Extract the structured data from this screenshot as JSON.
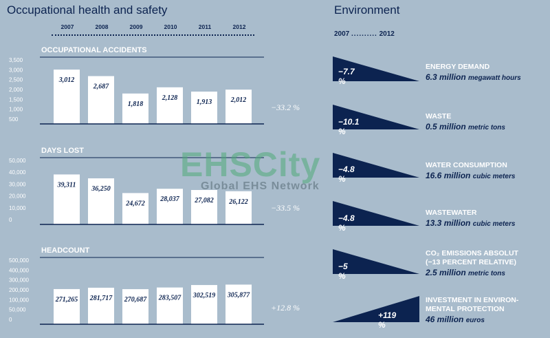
{
  "left_title": "Occupational health and safety",
  "right_title": "Environment",
  "years": [
    "2007",
    "2008",
    "2009",
    "2010",
    "2011",
    "2012"
  ],
  "env_range": {
    "start": "2007",
    "end": "2012"
  },
  "chart_data": [
    {
      "type": "bar",
      "title": "OCCUPATIONAL ACCIDENTS",
      "categories": [
        "2007",
        "2008",
        "2009",
        "2010",
        "2011",
        "2012"
      ],
      "values": [
        3012,
        2687,
        1818,
        2128,
        1913,
        2012
      ],
      "value_labels": [
        "3,012",
        "2,687",
        "1,818",
        "2,128",
        "1,913",
        "2,012"
      ],
      "yticks": [
        "3,500",
        "3,000",
        "2,500",
        "2,000",
        "1,500",
        "1,000",
        "500"
      ],
      "ylim": [
        300,
        3600
      ],
      "change": "−33.2 %"
    },
    {
      "type": "bar",
      "title": "DAYS LOST",
      "categories": [
        "2007",
        "2008",
        "2009",
        "2010",
        "2011",
        "2012"
      ],
      "values": [
        39311,
        36250,
        24672,
        28037,
        27082,
        26122
      ],
      "value_labels": [
        "39,311",
        "36,250",
        "24,672",
        "28,037",
        "27,082",
        "26,122"
      ],
      "yticks": [
        "50,000",
        "40,000",
        "30,000",
        "20,000",
        "10,000",
        "0"
      ],
      "ylim": [
        0,
        52000
      ],
      "change": "−33.5 %"
    },
    {
      "type": "bar",
      "title": "HEADCOUNT",
      "categories": [
        "2007",
        "2008",
        "2009",
        "2010",
        "2011",
        "2012"
      ],
      "values": [
        271265,
        281717,
        270687,
        283507,
        302519,
        305877
      ],
      "value_labels": [
        "271,265",
        "281,717",
        "270,687",
        "283,507",
        "302,519",
        "305,877"
      ],
      "yticks": [
        "500,000",
        "400,000",
        "300,000",
        "200,000",
        "100,000",
        "50,000",
        "0"
      ],
      "ylim": [
        0,
        510000
      ],
      "change": "+12.8 %"
    }
  ],
  "environment": [
    {
      "pct": "−7.7 %",
      "label": "ENERGY DEMAND",
      "value": "6.3 million",
      "unit": "megawatt hours",
      "dir": "down"
    },
    {
      "pct": "−10.1 %",
      "label": "WASTE",
      "value": "0.5 million",
      "unit": "metric tons",
      "dir": "down"
    },
    {
      "pct": "−4.8 %",
      "label": "WATER CONSUMPTION",
      "value": "16.6 million",
      "unit": "cubic meters",
      "dir": "down"
    },
    {
      "pct": "−4.8 %",
      "label": "WASTEWATER",
      "value": "13.3 million",
      "unit": "cubic meters",
      "dir": "down"
    },
    {
      "pct": "−5 %",
      "label": "CO₂ EMISSIONS ABSOLUT",
      "label2": "(−13 PERCENT RELATIVE)",
      "value": "2.5 million",
      "unit": "metric tons",
      "dir": "down"
    },
    {
      "pct": "+119 %",
      "label": "INVESTMENT IN ENVIRON-",
      "label2": "MENTAL PROTECTION",
      "value": "46 million",
      "unit": "euros",
      "dir": "up"
    }
  ],
  "watermark": {
    "big": "EHSCity",
    "small": "Global EHS Network"
  },
  "colors": {
    "navy": "#0c2350",
    "bar": "#ffffff",
    "bg": "#a9bccc"
  }
}
